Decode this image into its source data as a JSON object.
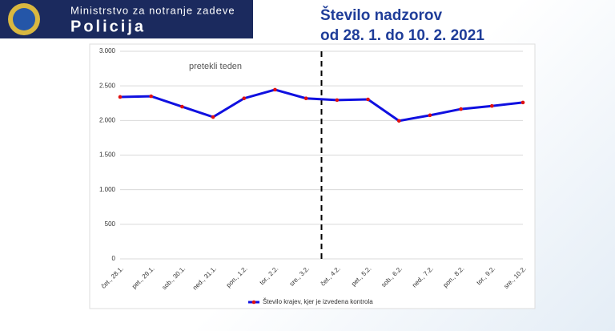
{
  "header": {
    "ministry": "Ministrstvo za notranje zadeve",
    "brand": "Policija"
  },
  "chart_data": {
    "type": "line",
    "title": "Število nadzorov",
    "subtitle": "od 28. 1. do 10. 2. 2021",
    "annotation": "pretekli teden",
    "categories": [
      "čet., 28.1.",
      "pet., 29.1.",
      "sob., 30.1.",
      "ned., 31.1.",
      "pon., 1.2.",
      "tor., 2.2.",
      "sre., 3.2.",
      "čet., 4.2.",
      "pet., 5.2.",
      "sob., 6.2.",
      "ned., 7.2.",
      "pon., 8.2.",
      "tor., 9.2.",
      "sre., 10.2."
    ],
    "series": [
      {
        "name": "Število krajev, kjer je izvedena kontrola",
        "color": "#1010e0",
        "marker_color": "#e01010",
        "values": [
          2340,
          2350,
          2200,
          2050,
          2320,
          2445,
          2320,
          2295,
          2305,
          1995,
          2075,
          2165,
          2210,
          2260
        ]
      }
    ],
    "ylim": [
      0,
      3000
    ],
    "yticks": [
      0,
      500,
      {
        "value": 1000,
        "label": "1.000"
      },
      {
        "value": 1500,
        "label": "1.500"
      },
      {
        "value": 2000,
        "label": "2.000"
      },
      {
        "value": 2500,
        "label": "2.500"
      },
      {
        "value": 3000,
        "label": "3.000"
      }
    ],
    "grid": true,
    "legend": "bottom"
  }
}
